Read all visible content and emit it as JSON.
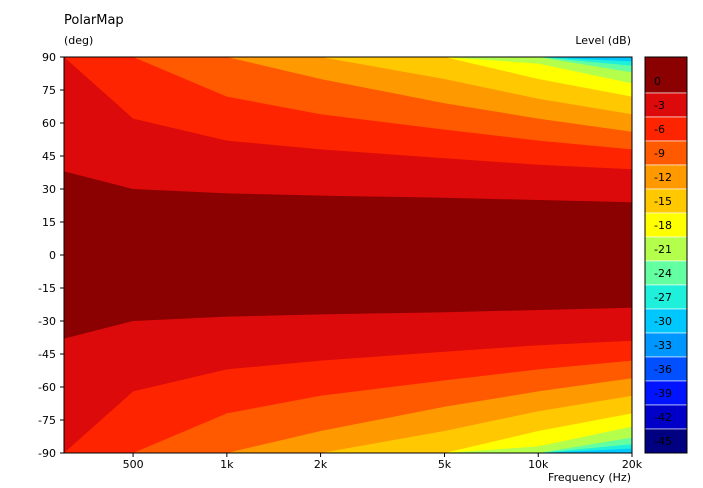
{
  "chart_data": {
    "type": "heatmap",
    "title": "PolarMap",
    "ylabel": "(deg)",
    "xlabel": "Frequency  (Hz)",
    "colorbar_label": "Level  (dB)",
    "x_scale": "log",
    "xlim": [
      300,
      20000
    ],
    "ylim": [
      -90,
      90
    ],
    "x_ticks": [
      500,
      1000,
      2000,
      5000,
      10000,
      20000
    ],
    "x_tick_labels": [
      "500",
      "1k",
      "2k",
      "5k",
      "10k",
      "20k"
    ],
    "y_ticks": [
      90,
      75,
      60,
      45,
      30,
      15,
      0,
      -15,
      -30,
      -45,
      -60,
      -75,
      -90
    ],
    "y_tick_labels": [
      "90",
      "75",
      "60",
      "45",
      "30",
      "15",
      "0",
      "-15",
      "-30",
      "-45",
      "-60",
      "-75",
      "-90"
    ],
    "levels": [
      {
        "label": "0",
        "color": "#8b0000"
      },
      {
        "label": "-3",
        "color": "#dc0a0a"
      },
      {
        "label": "-6",
        "color": "#ff2400"
      },
      {
        "label": "-9",
        "color": "#ff5a00"
      },
      {
        "label": "-12",
        "color": "#ff9900"
      },
      {
        "label": "-15",
        "color": "#ffc800"
      },
      {
        "label": "-18",
        "color": "#ffff00"
      },
      {
        "label": "-21",
        "color": "#b4ff4c"
      },
      {
        "label": "-24",
        "color": "#64ffa0"
      },
      {
        "label": "-27",
        "color": "#1ef0dc"
      },
      {
        "label": "-30",
        "color": "#00c8ff"
      },
      {
        "label": "-33",
        "color": "#0096ff"
      },
      {
        "label": "-36",
        "color": "#0050ff"
      },
      {
        "label": "-39",
        "color": "#0014ff"
      },
      {
        "label": "-42",
        "color": "#0000c8"
      },
      {
        "label": "-45",
        "color": "#000080"
      }
    ],
    "contours_deg": {
      "frequency_hz": [
        300,
        500,
        1000,
        2000,
        5000,
        10000,
        20000
      ],
      "boundaries": [
        {
          "between": "0/-3",
          "deg": [
            38,
            30,
            28,
            27,
            26,
            25,
            24
          ]
        },
        {
          "between": "-3/-6",
          "deg": [
            90,
            62,
            52,
            48,
            44,
            41,
            39
          ]
        },
        {
          "between": "-6/-9",
          "deg": [
            90,
            90,
            72,
            64,
            57,
            52,
            48
          ]
        },
        {
          "between": "-9/-12",
          "deg": [
            90,
            90,
            90,
            80,
            69,
            62,
            56
          ]
        },
        {
          "between": "-12/-15",
          "deg": [
            90,
            90,
            90,
            90,
            80,
            71,
            64
          ]
        },
        {
          "between": "-15/-18",
          "deg": [
            90,
            90,
            90,
            90,
            90,
            80,
            72
          ]
        },
        {
          "between": "-18/-21",
          "deg": [
            90,
            90,
            90,
            90,
            90,
            87,
            78
          ]
        },
        {
          "between": "-21/-24",
          "deg": [
            90,
            90,
            90,
            90,
            90,
            90,
            83
          ]
        },
        {
          "between": "-24/-27",
          "deg": [
            90,
            90,
            90,
            90,
            90,
            90,
            86
          ]
        },
        {
          "between": "-27/-30",
          "deg": [
            90,
            90,
            90,
            90,
            90,
            90,
            88
          ]
        }
      ]
    }
  }
}
